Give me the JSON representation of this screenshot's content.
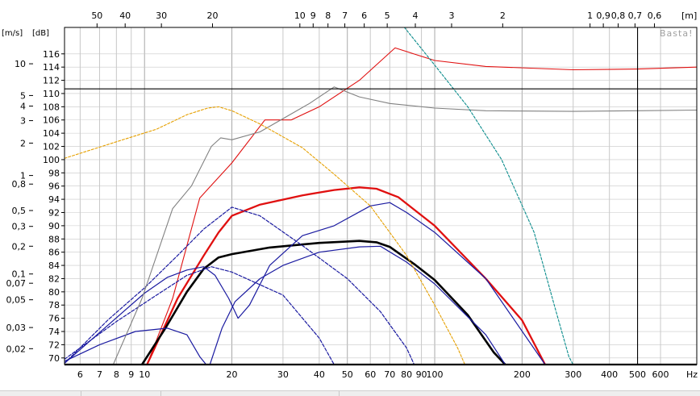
{
  "watermark": "Basta!",
  "units": {
    "velocity": "[m/s]",
    "level": "[dB]",
    "wavelength": "[m]",
    "frequency": "Hz"
  },
  "colors": {
    "background": "#ffffff",
    "grid": "#c8c8c8",
    "grid_major": "#a8a8a8",
    "red": "#e01010",
    "black": "#000000",
    "blue": "#1a1aa0",
    "gray": "#808080",
    "orange": "#e6a000",
    "teal": "#0a8c8c"
  },
  "chart_data": {
    "type": "line",
    "x_scale": "log",
    "x_range_hz": [
      5.3,
      800
    ],
    "y_range_db": [
      69,
      120
    ],
    "x_ticks": [
      {
        "v": 6,
        "l": "6"
      },
      {
        "v": 7,
        "l": "7"
      },
      {
        "v": 8,
        "l": "8"
      },
      {
        "v": 9,
        "l": "9"
      },
      {
        "v": 10,
        "l": "10"
      },
      {
        "v": 20,
        "l": "20"
      },
      {
        "v": 30,
        "l": "30"
      },
      {
        "v": 40,
        "l": "40"
      },
      {
        "v": 50,
        "l": "50"
      },
      {
        "v": 60,
        "l": "60"
      },
      {
        "v": 70,
        "l": "70"
      },
      {
        "v": 80,
        "l": "80"
      },
      {
        "v": 90,
        "l": "90"
      },
      {
        "v": 100,
        "l": "100"
      },
      {
        "v": 200,
        "l": "200"
      },
      {
        "v": 300,
        "l": "300"
      },
      {
        "v": 400,
        "l": "400"
      },
      {
        "v": 500,
        "l": "500"
      },
      {
        "v": 600,
        "l": "600"
      }
    ],
    "y_ticks_db": [
      70,
      72,
      74,
      76,
      78,
      80,
      82,
      84,
      86,
      88,
      90,
      92,
      94,
      96,
      98,
      100,
      102,
      104,
      106,
      108,
      110,
      112,
      114,
      116
    ],
    "wavelength_ticks": [
      {
        "l": "50",
        "m": 50
      },
      {
        "l": "40",
        "m": 40
      },
      {
        "l": "30",
        "m": 30
      },
      {
        "l": "20",
        "m": 20
      },
      {
        "l": "10",
        "m": 10
      },
      {
        "l": "9",
        "m": 9
      },
      {
        "l": "8",
        "m": 8
      },
      {
        "l": "7",
        "m": 7
      },
      {
        "l": "6",
        "m": 6
      },
      {
        "l": "5",
        "m": 5
      },
      {
        "l": "4",
        "m": 4
      },
      {
        "l": "3",
        "m": 3
      },
      {
        "l": "2",
        "m": 2
      },
      {
        "l": "1",
        "m": 1
      },
      {
        "l": "0,9",
        "m": 0.9
      },
      {
        "l": "0,8",
        "m": 0.8
      },
      {
        "l": "0,7",
        "m": 0.7
      },
      {
        "l": "0,6",
        "m": 0.6
      }
    ],
    "velocity_ticks": [
      {
        "l": "10",
        "db": 114.5
      },
      {
        "l": "5",
        "db": 109.7
      },
      {
        "l": "4",
        "db": 108.1
      },
      {
        "l": "3",
        "db": 105.9
      },
      {
        "l": "2",
        "db": 102.5
      },
      {
        "l": "1",
        "db": 97.6
      },
      {
        "l": "0,8",
        "db": 96.3
      },
      {
        "l": "0,5",
        "db": 92.3
      },
      {
        "l": "0,3",
        "db": 89.9
      },
      {
        "l": "0,2",
        "db": 86.9
      },
      {
        "l": "0,1",
        "db": 82.7
      },
      {
        "l": "0,07",
        "db": 81.3
      },
      {
        "l": "0,05",
        "db": 78.8
      },
      {
        "l": "0,03",
        "db": 74.6
      },
      {
        "l": "0,02",
        "db": 71.4
      }
    ],
    "reference_lines": {
      "horizontal_db": 110.7,
      "vertical_hz": 500
    },
    "series": [
      {
        "color": "red",
        "width": 2.3,
        "dash": "",
        "points": [
          [
            10.2,
            69
          ],
          [
            13,
            79
          ],
          [
            16,
            85.5
          ],
          [
            18,
            89
          ],
          [
            20,
            91.5
          ],
          [
            25,
            93.2
          ],
          [
            35,
            94.6
          ],
          [
            45,
            95.4
          ],
          [
            55,
            95.8
          ],
          [
            63,
            95.6
          ],
          [
            75,
            94.3
          ],
          [
            100,
            90
          ],
          [
            150,
            82
          ],
          [
            200,
            75.7
          ],
          [
            240,
            69
          ]
        ]
      },
      {
        "color": "red",
        "width": 1.1,
        "dash": "",
        "points": [
          [
            10.2,
            69
          ],
          [
            12.5,
            79
          ],
          [
            15.5,
            94.2
          ],
          [
            20,
            99.5
          ],
          [
            26,
            106
          ],
          [
            32,
            106
          ],
          [
            40,
            108
          ],
          [
            55,
            112
          ],
          [
            73,
            116.9
          ],
          [
            100,
            115
          ],
          [
            150,
            114.1
          ],
          [
            300,
            113.6
          ],
          [
            500,
            113.7
          ],
          [
            800,
            114
          ]
        ]
      },
      {
        "color": "black",
        "width": 2.6,
        "dash": "",
        "points": [
          [
            9.8,
            69
          ],
          [
            11.8,
            74.5
          ],
          [
            14,
            80
          ],
          [
            16,
            83.5
          ],
          [
            18,
            85.2
          ],
          [
            20,
            85.7
          ],
          [
            27,
            86.7
          ],
          [
            40,
            87.4
          ],
          [
            55,
            87.7
          ],
          [
            63,
            87.5
          ],
          [
            70,
            86.8
          ],
          [
            85,
            84.2
          ],
          [
            100,
            81.8
          ],
          [
            130,
            76.5
          ],
          [
            160,
            70.8
          ],
          [
            175,
            69
          ]
        ]
      },
      {
        "color": "blue",
        "width": 1.2,
        "dash": "",
        "points": [
          [
            5.3,
            69.5
          ],
          [
            7,
            72
          ],
          [
            9.3,
            74
          ],
          [
            12,
            74.5
          ],
          [
            14,
            73.5
          ],
          [
            15.5,
            70.2
          ],
          [
            16.3,
            69
          ]
        ]
      },
      {
        "color": "blue",
        "width": 1.2,
        "dash": "",
        "points": [
          [
            5.3,
            69.2
          ],
          [
            7.5,
            75
          ],
          [
            10,
            79.8
          ],
          [
            12,
            82.2
          ],
          [
            14,
            83.3
          ],
          [
            16,
            83.8
          ],
          [
            17.5,
            82.5
          ],
          [
            19.5,
            79
          ],
          [
            21,
            76
          ],
          [
            23,
            78
          ],
          [
            27,
            84
          ],
          [
            35,
            88.5
          ],
          [
            45,
            90
          ],
          [
            60,
            93
          ],
          [
            70,
            93.5
          ],
          [
            80,
            92
          ],
          [
            100,
            89
          ],
          [
            150,
            82
          ],
          [
            240,
            69
          ]
        ]
      },
      {
        "color": "blue",
        "width": 1.2,
        "dash": "",
        "points": [
          [
            16.8,
            69
          ],
          [
            18.5,
            74.5
          ],
          [
            20.5,
            78.5
          ],
          [
            25,
            82
          ],
          [
            30,
            84
          ],
          [
            40,
            86
          ],
          [
            55,
            86.8
          ],
          [
            65,
            86.9
          ],
          [
            80,
            84.5
          ],
          [
            100,
            81.2
          ],
          [
            150,
            73.5
          ],
          [
            175,
            69
          ]
        ]
      },
      {
        "color": "blue",
        "width": 1.2,
        "dash": "4,2",
        "points": [
          [
            5.3,
            69.2
          ],
          [
            7.5,
            75.8
          ],
          [
            10,
            80.6
          ],
          [
            13,
            85.5
          ],
          [
            16,
            89.5
          ],
          [
            20,
            92.8
          ],
          [
            25,
            91.5
          ],
          [
            35,
            87
          ],
          [
            50,
            82
          ],
          [
            65,
            77
          ],
          [
            80,
            71.5
          ],
          [
            85,
            69
          ]
        ]
      },
      {
        "color": "blue",
        "width": 1.2,
        "dash": "4,2",
        "points": [
          [
            5.3,
            69.8
          ],
          [
            8,
            75.5
          ],
          [
            11,
            79.5
          ],
          [
            14,
            82.5
          ],
          [
            17,
            83.8
          ],
          [
            20,
            83
          ],
          [
            30,
            79.5
          ],
          [
            40,
            73
          ],
          [
            45,
            69
          ]
        ]
      },
      {
        "color": "gray",
        "width": 1.1,
        "dash": "",
        "points": [
          [
            7.8,
            69
          ],
          [
            9.8,
            79
          ],
          [
            12.5,
            92.6
          ],
          [
            14.5,
            96
          ],
          [
            17,
            102
          ],
          [
            18.3,
            103.3
          ],
          [
            20,
            103
          ],
          [
            25,
            104.2
          ],
          [
            30,
            106.2
          ],
          [
            37,
            108.5
          ],
          [
            45,
            111
          ],
          [
            55,
            109.5
          ],
          [
            70,
            108.5
          ],
          [
            100,
            107.8
          ],
          [
            150,
            107.4
          ],
          [
            300,
            107.3
          ],
          [
            500,
            107.4
          ],
          [
            800,
            107.5
          ]
        ]
      },
      {
        "color": "orange",
        "width": 1.1,
        "dash": "3,2",
        "points": [
          [
            5.3,
            100.2
          ],
          [
            8,
            102.7
          ],
          [
            11,
            104.6
          ],
          [
            14,
            106.8
          ],
          [
            16.5,
            107.8
          ],
          [
            18,
            108
          ],
          [
            20,
            107.4
          ],
          [
            25,
            105.4
          ],
          [
            35,
            101.8
          ],
          [
            45,
            97.8
          ],
          [
            60,
            93
          ],
          [
            80,
            85.5
          ],
          [
            100,
            78
          ],
          [
            120,
            71.5
          ],
          [
            127,
            69
          ]
        ]
      },
      {
        "color": "teal",
        "width": 1.1,
        "dash": "3,2",
        "points": [
          [
            77,
            120.5
          ],
          [
            100,
            114.3
          ],
          [
            130,
            108
          ],
          [
            170,
            100
          ],
          [
            220,
            89
          ],
          [
            260,
            77.5
          ],
          [
            290,
            70.2
          ],
          [
            300,
            69
          ]
        ]
      }
    ]
  }
}
